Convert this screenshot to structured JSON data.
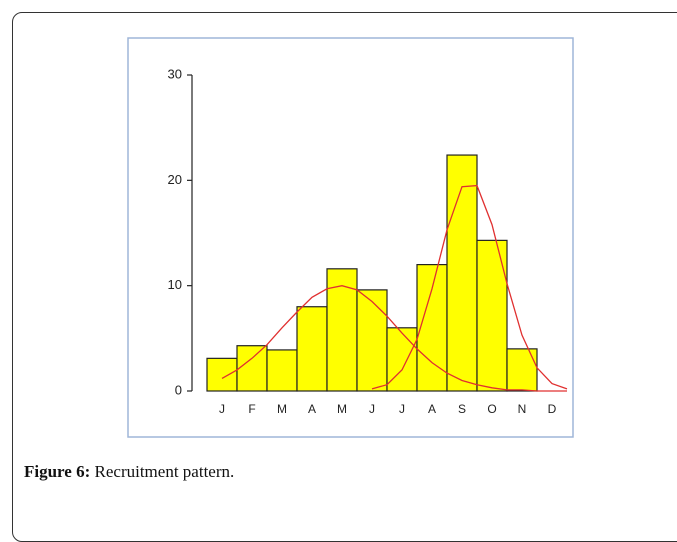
{
  "chart_data": {
    "type": "bar",
    "categories": [
      "J",
      "F",
      "M",
      "A",
      "M",
      "J",
      "J",
      "A",
      "S",
      "O",
      "N",
      "D"
    ],
    "values": [
      3.1,
      4.3,
      3.9,
      8.0,
      11.6,
      9.6,
      6.0,
      12.0,
      22.4,
      14.3,
      4.0,
      0
    ],
    "color": "#ffff00",
    "ylim": [
      0,
      30
    ],
    "yticks": [
      0,
      10,
      20,
      30
    ],
    "lines": [
      {
        "color": "#e03030",
        "x": [
          0,
          0.5,
          1,
          1.5,
          2,
          2.5,
          3,
          3.5,
          4,
          4.5,
          5,
          5.5,
          6,
          6.5,
          7,
          7.5,
          8,
          8.5,
          9,
          9.5,
          10,
          10.5,
          11,
          11.5
        ],
        "values": [
          1.2,
          2.0,
          3.1,
          4.4,
          6.0,
          7.5,
          8.9,
          9.7,
          10.0,
          9.6,
          8.5,
          7.1,
          5.5,
          4.0,
          2.7,
          1.7,
          1.0,
          0.6,
          0.3,
          0.1,
          0.1,
          0.0,
          0.0,
          0.0
        ]
      },
      {
        "color": "#e03030",
        "x": [
          5,
          5.5,
          6,
          6.5,
          7,
          7.5,
          8,
          8.5,
          9,
          9.5,
          10,
          10.5,
          11,
          11.5
        ],
        "values": [
          0.2,
          0.6,
          2.0,
          4.9,
          9.7,
          15.3,
          19.4,
          19.5,
          15.8,
          10.2,
          5.3,
          2.2,
          0.7,
          0.2
        ]
      }
    ]
  },
  "caption": {
    "label": "Figure 6:",
    "text": "Recruitment pattern."
  }
}
